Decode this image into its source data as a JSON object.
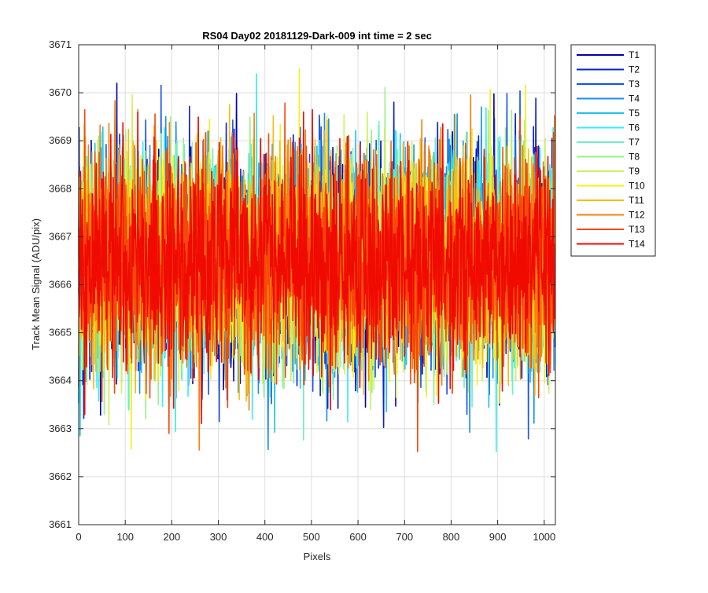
{
  "chart_data": {
    "type": "line",
    "title": "RS04 Day02 20181129-Dark-009 int time = 2 sec",
    "xlabel": "Pixels",
    "ylabel": "Track Mean Signal (ADU/pix)",
    "xlim": [
      0,
      1024
    ],
    "ylim": [
      3661,
      3671
    ],
    "xticks": [
      0,
      100,
      200,
      300,
      400,
      500,
      600,
      700,
      800,
      900,
      1000
    ],
    "yticks": [
      3661,
      3662,
      3663,
      3664,
      3665,
      3666,
      3667,
      3668,
      3669,
      3670,
      3671
    ],
    "grid": true,
    "legend_position": "outside-top-right",
    "n_points_per_series": 1024,
    "series": [
      {
        "name": "T1",
        "color": "#0000b0",
        "center": 3666.5,
        "noise_sd": 1.1
      },
      {
        "name": "T2",
        "color": "#0a22d0",
        "center": 3666.5,
        "noise_sd": 1.1
      },
      {
        "name": "T3",
        "color": "#1454e6",
        "center": 3666.5,
        "noise_sd": 1.1
      },
      {
        "name": "T4",
        "color": "#1a8ef0",
        "center": 3666.5,
        "noise_sd": 1.1
      },
      {
        "name": "T5",
        "color": "#20c0f0",
        "center": 3666.5,
        "noise_sd": 1.1
      },
      {
        "name": "T6",
        "color": "#36eef0",
        "center": 3666.5,
        "noise_sd": 1.1
      },
      {
        "name": "T7",
        "color": "#6cf0c4",
        "center": 3666.5,
        "noise_sd": 1.1
      },
      {
        "name": "T8",
        "color": "#9cf08c",
        "center": 3666.5,
        "noise_sd": 1.1
      },
      {
        "name": "T9",
        "color": "#cef25a",
        "center": 3666.5,
        "noise_sd": 1.1
      },
      {
        "name": "T10",
        "color": "#f6f01a",
        "center": 3666.5,
        "noise_sd": 1.1
      },
      {
        "name": "T11",
        "color": "#f6be10",
        "center": 3666.5,
        "noise_sd": 1.1
      },
      {
        "name": "T12",
        "color": "#f6800c",
        "center": 3666.5,
        "noise_sd": 1.1
      },
      {
        "name": "T13",
        "color": "#f64808",
        "center": 3666.5,
        "noise_sd": 1.1
      },
      {
        "name": "T14",
        "color": "#f00a00",
        "center": 3666.5,
        "noise_sd": 1.1
      }
    ]
  }
}
